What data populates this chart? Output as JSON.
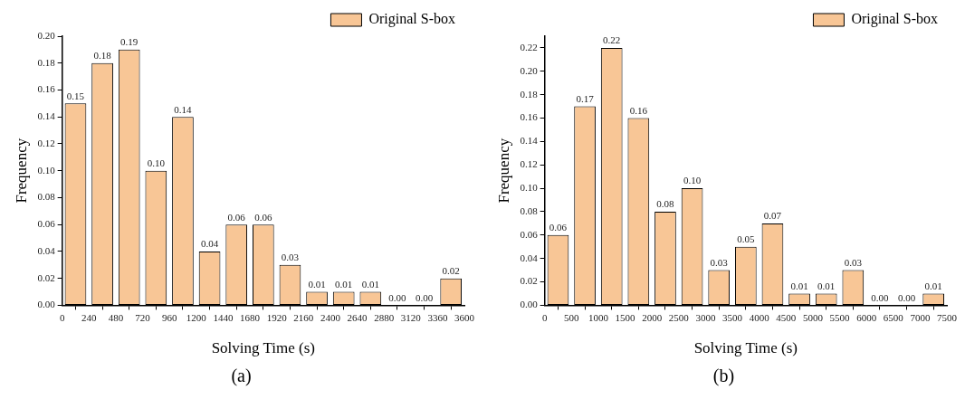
{
  "chart_data": [
    {
      "type": "histogram",
      "xlabel": "Solving Time (s)",
      "ylabel": "Frequency",
      "annotations": [
        "(a)"
      ],
      "bins": [
        0,
        240,
        480,
        720,
        960,
        1200,
        1440,
        1680,
        1920,
        2160,
        2400,
        2640,
        2880,
        3120,
        3360,
        3600
      ],
      "series": [
        {
          "name": "Original S-box",
          "color": "#f8c696",
          "values": [
            0.15,
            0.18,
            0.19,
            0.1,
            0.14,
            0.04,
            0.06,
            0.06,
            0.03,
            0.01,
            0.01,
            0.01,
            0.0,
            0.0,
            0.02
          ],
          "value_labels": [
            "0.15",
            "0.18",
            "0.19",
            "0.10",
            "0.14",
            "0.04",
            "0.06",
            "0.06",
            "0.03",
            "0.01",
            "0.01",
            "0.01",
            "0.00",
            "0.00",
            "0.02"
          ]
        }
      ],
      "xlim": [
        0,
        3600
      ],
      "xticks": [
        0,
        240,
        480,
        720,
        960,
        1200,
        1440,
        1680,
        1920,
        2160,
        2400,
        2640,
        2880,
        3120,
        3360,
        3600
      ],
      "ylim": [
        0,
        0.2
      ],
      "yticks": [
        {
          "value": 0,
          "label": "0.00"
        },
        {
          "value": 0.02,
          "label": "0.02"
        },
        {
          "value": 0.04,
          "label": "0.04"
        },
        {
          "value": 0.06,
          "label": "0.06"
        },
        {
          "value": 0.08,
          "label": "0.08"
        },
        {
          "value": 0.1,
          "label": "0.10"
        },
        {
          "value": 0.12,
          "label": "0.12"
        },
        {
          "value": 0.14,
          "label": "0.14"
        },
        {
          "value": 0.16,
          "label": "0.16"
        },
        {
          "value": 0.18,
          "label": "0.18"
        },
        {
          "value": 0.2,
          "label": "0.20"
        }
      ],
      "legend": "top right",
      "grid": false
    },
    {
      "type": "histogram",
      "xlabel": "Solving Time (s)",
      "ylabel": "Frequency",
      "annotations": [
        "(b)"
      ],
      "bins": [
        0,
        500,
        1000,
        1500,
        2000,
        2500,
        3000,
        3500,
        4000,
        4500,
        5000,
        5500,
        6000,
        6500,
        7000,
        7500
      ],
      "series": [
        {
          "name": "Original S-box",
          "color": "#f8c696",
          "values": [
            0.06,
            0.17,
            0.22,
            0.16,
            0.08,
            0.1,
            0.03,
            0.05,
            0.07,
            0.01,
            0.01,
            0.03,
            0.0,
            0.0,
            0.01
          ],
          "value_labels": [
            "0.06",
            "0.17",
            "0.22",
            "0.16",
            "0.08",
            "0.10",
            "0.03",
            "0.05",
            "0.07",
            "0.01",
            "0.01",
            "0.03",
            "0.00",
            "0.00",
            "0.01"
          ]
        }
      ],
      "xlim": [
        0,
        7500
      ],
      "xticks": [
        0,
        500,
        1000,
        1500,
        2000,
        2500,
        3000,
        3500,
        4000,
        4500,
        5000,
        5500,
        6000,
        6500,
        7000,
        7500
      ],
      "ylim": [
        0,
        0.23
      ],
      "yticks": [
        {
          "value": 0,
          "label": "0.00"
        },
        {
          "value": 0.02,
          "label": "0.02"
        },
        {
          "value": 0.04,
          "label": "0.04"
        },
        {
          "value": 0.06,
          "label": "0.06"
        },
        {
          "value": 0.08,
          "label": "0.08"
        },
        {
          "value": 0.1,
          "label": "0.10"
        },
        {
          "value": 0.12,
          "label": "0.12"
        },
        {
          "value": 0.14,
          "label": "0.14"
        },
        {
          "value": 0.16,
          "label": "0.16"
        },
        {
          "value": 0.18,
          "label": "0.18"
        },
        {
          "value": 0.2,
          "label": "0.20"
        },
        {
          "value": 0.22,
          "label": "0.22"
        }
      ],
      "legend": "top right",
      "grid": false
    }
  ]
}
